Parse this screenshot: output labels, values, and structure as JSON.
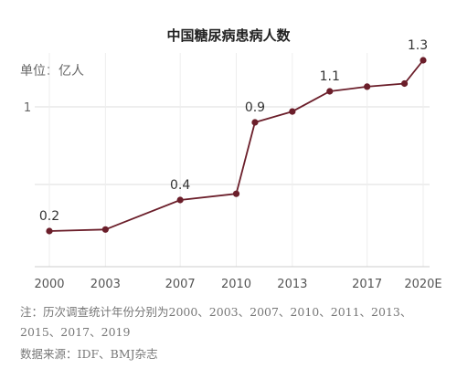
{
  "chart_data": {
    "type": "line",
    "title": "中国糖尿病患病人数",
    "unit_label": "单位：亿人",
    "x_ticks": [
      "2000",
      "2003",
      "2007",
      "2010",
      "2013",
      "2017",
      "2020E"
    ],
    "x": [
      2000,
      2003,
      2007,
      2010,
      2011,
      2013,
      2015,
      2017,
      2019,
      2020
    ],
    "y": [
      0.2,
      0.21,
      0.4,
      0.44,
      0.9,
      0.97,
      1.1,
      1.13,
      1.15,
      1.3
    ],
    "y_ticks": [
      1
    ],
    "ylim": [
      0,
      1.4
    ],
    "data_labels": [
      {
        "x": 2000,
        "text": "0.2"
      },
      {
        "x": 2007,
        "text": "0.4"
      },
      {
        "x": 2011,
        "text": "0.9"
      },
      {
        "x": 2015,
        "text": "1.1"
      },
      {
        "x": 2020,
        "text": "1.3"
      }
    ],
    "line_color": "#6b1e2a",
    "grid_color": "#dddddd"
  },
  "notes": {
    "note": "注：历次调查统计年份分别为2000、2003、2007、2010、2011、2013、2015、2017、2019",
    "source": "数据来源：IDF、BMJ杂志"
  }
}
